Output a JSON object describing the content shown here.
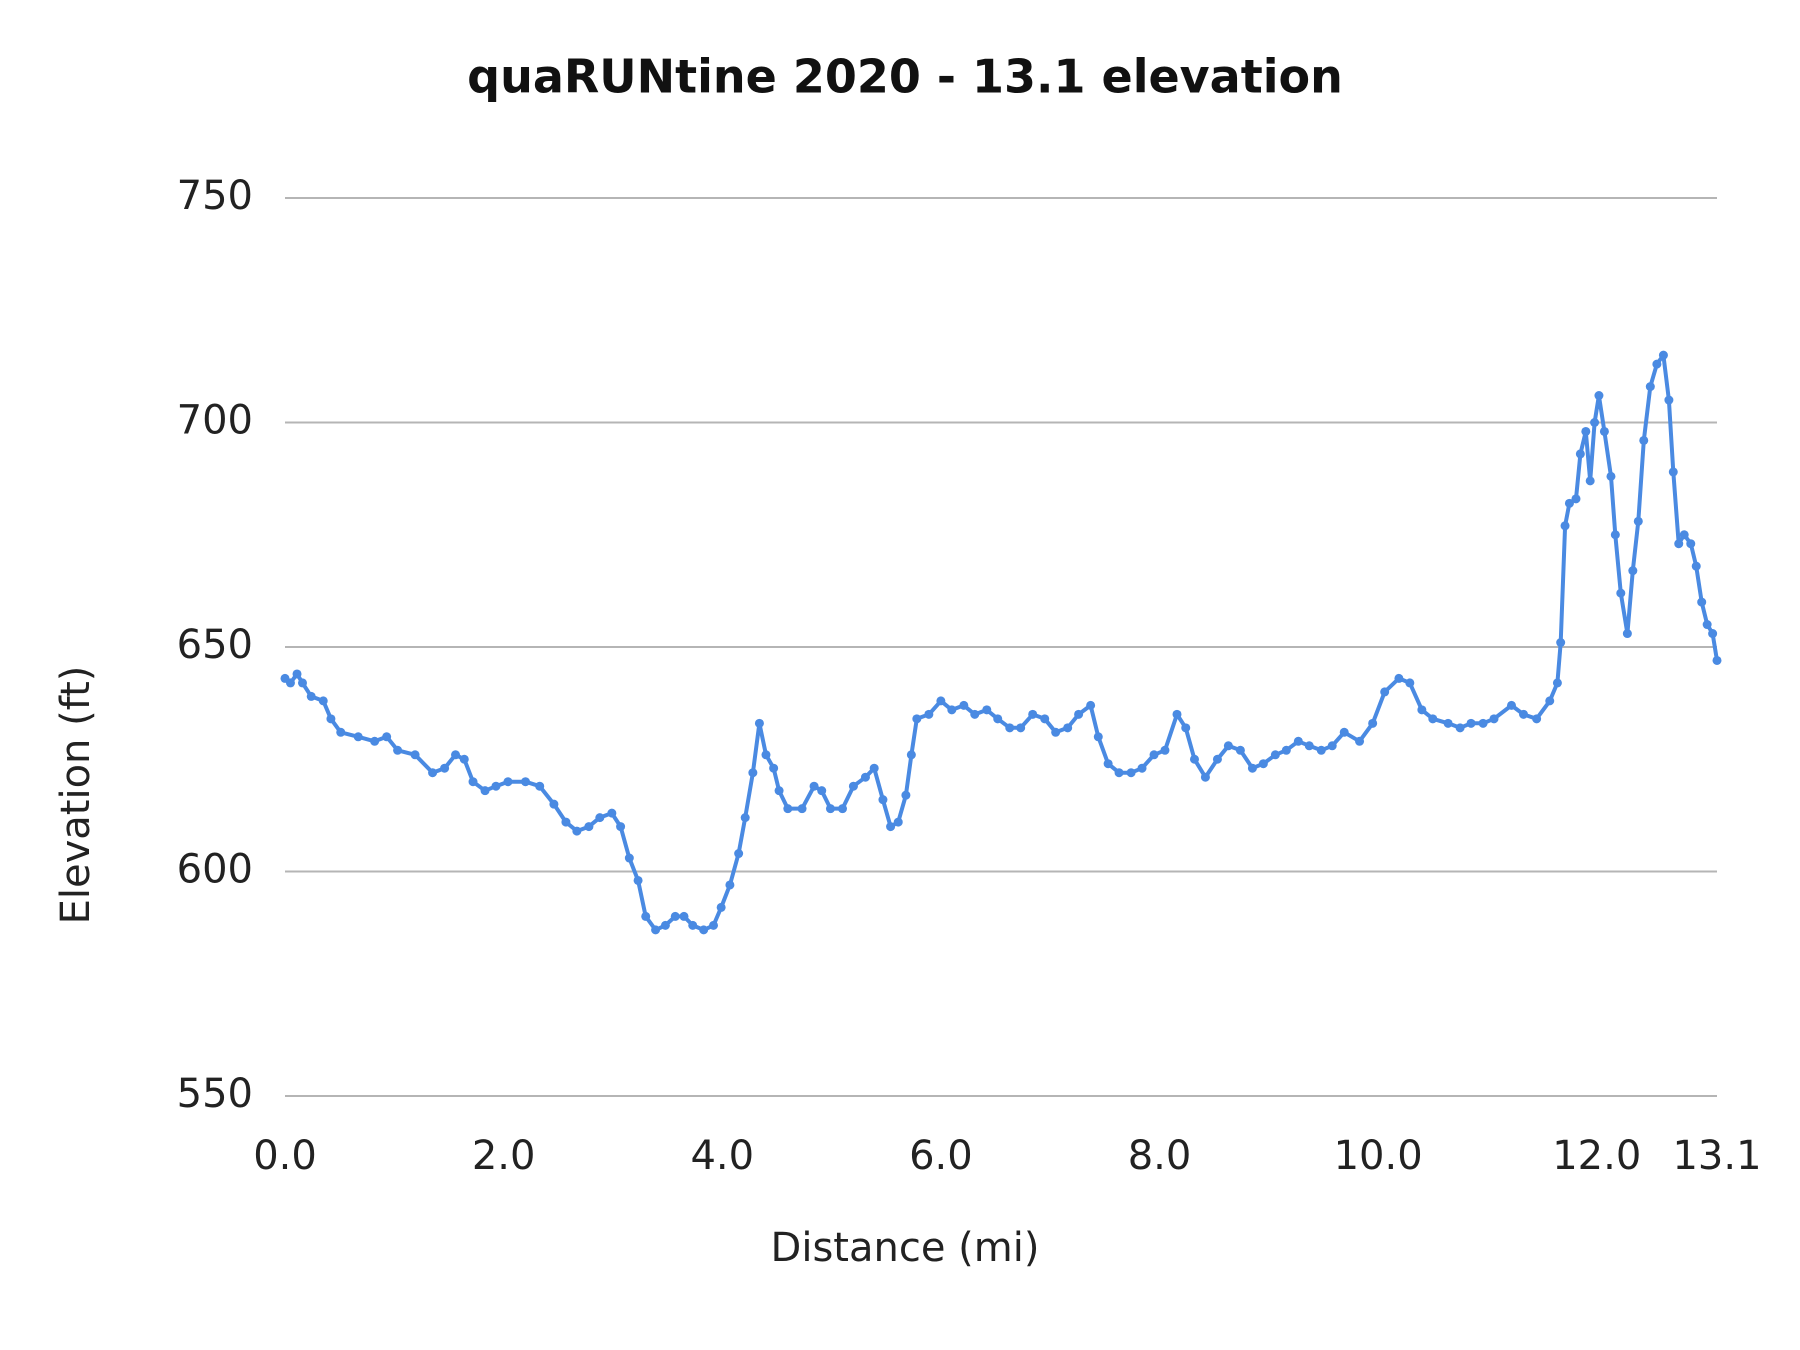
{
  "chart_data": {
    "type": "line",
    "title": "quaRUNtine 2020 - 13.1 elevation",
    "xlabel": "Distance (mi)",
    "ylabel": "Elevation (ft)",
    "x": [
      0,
      0.05,
      0.11,
      0.16,
      0.24,
      0.35,
      0.42,
      0.51,
      0.67,
      0.82,
      0.93,
      1.03,
      1.19,
      1.35,
      1.46,
      1.56,
      1.64,
      1.72,
      1.83,
      1.93,
      2.04,
      2.2,
      2.33,
      2.46,
      2.57,
      2.67,
      2.78,
      2.88,
      2.99,
      3.07,
      3.15,
      3.23,
      3.3,
      3.39,
      3.48,
      3.57,
      3.65,
      3.73,
      3.83,
      3.92,
      3.99,
      4.07,
      4.15,
      4.21,
      4.28,
      4.34,
      4.4,
      4.47,
      4.52,
      4.6,
      4.73,
      4.84,
      4.91,
      4.99,
      5.1,
      5.2,
      5.31,
      5.39,
      5.47,
      5.54,
      5.61,
      5.68,
      5.73,
      5.78,
      5.89,
      6,
      6.1,
      6.21,
      6.31,
      6.42,
      6.52,
      6.63,
      6.73,
      6.84,
      6.95,
      7.05,
      7.16,
      7.26,
      7.37,
      7.44,
      7.53,
      7.63,
      7.74,
      7.84,
      7.95,
      8.05,
      8.16,
      8.24,
      8.32,
      8.42,
      8.53,
      8.63,
      8.74,
      8.85,
      8.95,
      9.06,
      9.16,
      9.27,
      9.37,
      9.48,
      9.58,
      9.69,
      9.83,
      9.95,
      10.06,
      10.19,
      10.29,
      10.4,
      10.5,
      10.64,
      10.75,
      10.85,
      10.96,
      11.06,
      11.22,
      11.33,
      11.45,
      11.57,
      11.64,
      11.67,
      11.71,
      11.75,
      11.81,
      11.85,
      11.9,
      11.94,
      11.98,
      12.02,
      12.07,
      12.13,
      12.17,
      12.22,
      12.28,
      12.33,
      12.38,
      12.43,
      12.49,
      12.55,
      12.61,
      12.66,
      12.7,
      12.75,
      12.8,
      12.86,
      12.91,
      12.96,
      13.01,
      13.06,
      13.1
    ],
    "values": [
      643,
      642,
      644,
      642,
      639,
      638,
      634,
      631,
      630,
      629,
      630,
      627,
      626,
      622,
      623,
      626,
      625,
      620,
      618,
      619,
      620,
      620,
      619,
      615,
      611,
      609,
      610,
      612,
      613,
      610,
      603,
      598,
      590,
      587,
      588,
      590,
      590,
      588,
      587,
      588,
      592,
      597,
      604,
      612,
      622,
      633,
      626,
      623,
      618,
      614,
      614,
      619,
      618,
      614,
      614,
      619,
      621,
      623,
      616,
      610,
      611,
      617,
      626,
      634,
      635,
      638,
      636,
      637,
      635,
      636,
      634,
      632,
      632,
      635,
      634,
      631,
      632,
      635,
      637,
      630,
      624,
      622,
      622,
      623,
      626,
      627,
      635,
      632,
      625,
      621,
      625,
      628,
      627,
      623,
      624,
      626,
      627,
      629,
      628,
      627,
      628,
      631,
      629,
      633,
      640,
      643,
      642,
      636,
      634,
      633,
      632,
      633,
      633,
      634,
      637,
      635,
      634,
      638,
      642,
      651,
      677,
      682,
      683,
      693,
      698,
      687,
      700,
      706,
      698,
      688,
      675,
      662,
      653,
      667,
      678,
      696,
      708,
      713,
      715,
      705,
      689,
      673,
      675,
      673,
      668,
      660,
      655,
      653,
      647
    ],
    "color": "#4a8ae2",
    "xlim": [
      0,
      13.1
    ],
    "xticks": [
      {
        "value": 0,
        "label": "0.0"
      },
      {
        "value": 2,
        "label": "2.0"
      },
      {
        "value": 4,
        "label": "4.0"
      },
      {
        "value": 6,
        "label": "6.0"
      },
      {
        "value": 8,
        "label": "8.0"
      },
      {
        "value": 10,
        "label": "10.0"
      },
      {
        "value": 12,
        "label": "12.0"
      },
      13.1
    ],
    "ylim": [
      550,
      750
    ],
    "yticks": [
      550,
      600,
      650,
      700,
      750
    ],
    "grid": true,
    "markers": true
  }
}
